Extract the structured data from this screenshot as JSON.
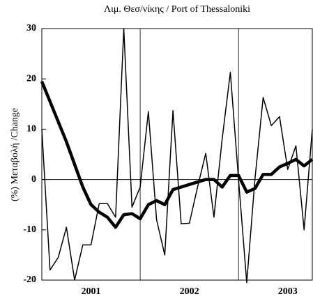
{
  "chart_data": {
    "type": "line",
    "title": "Λιμ. Θεσ/νίκης / Port of Thessaloniki",
    "y_label": "(%) Μεταβολή /Change",
    "categories": [
      null,
      null,
      null,
      null,
      null,
      null,
      null,
      null,
      null,
      null,
      null,
      null,
      null,
      null,
      null,
      null,
      null,
      null,
      null,
      null,
      null,
      null,
      null,
      null,
      null,
      null,
      null,
      null,
      null,
      null,
      null,
      null,
      null,
      null
    ],
    "series": [
      {
        "color": "#000000",
        "width": 1.5,
        "values": [
          10,
          -18,
          -15.5,
          -9.5,
          -20,
          -13,
          -13,
          -4.8,
          -4.8,
          -7.5,
          30,
          -5.5,
          -1.5,
          13.5,
          -8,
          -15,
          13.7,
          -8.8,
          -8.7,
          -1.5,
          5.2,
          -7.5,
          8,
          21.3,
          0,
          -20.5,
          0,
          16.3,
          10.7,
          12.5,
          2,
          6.7,
          -10,
          10
        ]
      },
      {
        "color": "#000000",
        "width": 4.5,
        "values": [
          19.5,
          15.5,
          11.5,
          7.5,
          3,
          -1.5,
          -5,
          -6.5,
          -7.5,
          -9.5,
          -7,
          -6.8,
          -7.8,
          -5,
          -4.2,
          -5,
          -2,
          -1.5,
          -1,
          -0.5,
          0,
          0,
          -1.5,
          0.8,
          0.8,
          -2.5,
          -1.8,
          1,
          1,
          2.5,
          3.2,
          4,
          2.7,
          4
        ]
      }
    ],
    "xlim": [
      0,
      33
    ],
    "xticks": [
      {
        "value": 6,
        "label": "2001"
      },
      {
        "value": 18,
        "label": "2002"
      },
      {
        "value": 30,
        "label": "2003"
      }
    ],
    "vlines": [
      12,
      24
    ],
    "ylim": [
      -20,
      30
    ],
    "yticks": [
      -20,
      -10,
      0,
      10,
      20,
      30
    ]
  }
}
